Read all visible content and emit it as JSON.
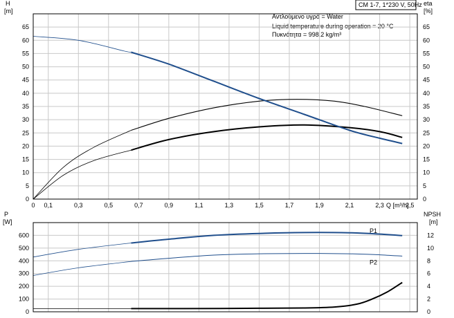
{
  "header": {
    "model": "CM 1-7, 1*230 V, 50Hz",
    "info_lines": [
      "Αντλούμενο υγρό = Water",
      "Liquid temperature during operation = 20 °C",
      "Πυκνότητα = 998.2 kg/m³"
    ]
  },
  "colors": {
    "head_curve": "#1f4e8c",
    "lines": "#000000",
    "grid": "#c8c8c8"
  },
  "chart_data": [
    {
      "type": "line",
      "title": "",
      "xlabel": "Q [m³/h]",
      "ylabel": "H [m]",
      "y2label": "eta [%]",
      "xlim": [
        0,
        2.55
      ],
      "ylim": [
        0,
        70
      ],
      "y2lim": [
        0,
        70
      ],
      "x_ticks": [
        "0",
        "0,1",
        "0,3",
        "0,5",
        "0,7",
        "0,9",
        "1,1",
        "1,3",
        "1,5",
        "1,7",
        "1,9",
        "2,1",
        "2,3",
        "2,5"
      ],
      "x_tick_values": [
        0,
        0.1,
        0.3,
        0.5,
        0.7,
        0.9,
        1.1,
        1.3,
        1.5,
        1.7,
        1.9,
        2.1,
        2.3,
        2.5
      ],
      "y_ticks": [
        0,
        5,
        10,
        15,
        20,
        25,
        30,
        35,
        40,
        45,
        50,
        55,
        60,
        65
      ],
      "grid": true,
      "series": [
        {
          "role": "head",
          "x": [
            0,
            0.3,
            0.6,
            0.65,
            0.9,
            1.2,
            1.5,
            1.8,
            2.1,
            2.3,
            2.45
          ],
          "values": [
            61.5,
            60,
            56,
            55.5,
            51,
            44.5,
            38,
            32,
            26,
            23,
            21
          ]
        },
        {
          "role": "efficiency-1",
          "x": [
            0,
            0.2,
            0.4,
            0.65,
            0.9,
            1.2,
            1.5,
            1.75,
            2.0,
            2.2,
            2.45
          ],
          "values": [
            0,
            12,
            19.5,
            26,
            30.5,
            34.5,
            37,
            37.7,
            37,
            35,
            31.5
          ]
        },
        {
          "role": "efficiency-2",
          "x": [
            0,
            0.2,
            0.4,
            0.65,
            0.9,
            1.2,
            1.5,
            1.8,
            2.1,
            2.3,
            2.45
          ],
          "values": [
            0,
            9,
            14.5,
            18.5,
            22.5,
            25.5,
            27.3,
            28,
            27,
            25.5,
            23.3
          ]
        }
      ]
    },
    {
      "type": "line",
      "title": "",
      "ylabel": "P [W]",
      "y2label": "NPSH [m]",
      "ylim": [
        0,
        700
      ],
      "y2lim": [
        0,
        14
      ],
      "y_ticks": [
        0,
        100,
        200,
        300,
        400,
        500,
        600
      ],
      "y2_ticks": [
        0,
        2,
        4,
        6,
        8,
        10,
        12
      ],
      "grid": true,
      "series": [
        {
          "name": "P1",
          "x": [
            0,
            0.3,
            0.65,
            0.9,
            1.2,
            1.5,
            1.8,
            2.1,
            2.3,
            2.45
          ],
          "values": [
            430,
            490,
            540,
            570,
            600,
            615,
            622,
            620,
            610,
            598
          ]
        },
        {
          "name": "P2",
          "x": [
            0,
            0.3,
            0.65,
            0.9,
            1.2,
            1.5,
            1.8,
            2.1,
            2.3,
            2.45
          ],
          "values": [
            285,
            345,
            395,
            420,
            445,
            455,
            458,
            455,
            447,
            437
          ]
        },
        {
          "role": "npsh",
          "x": [
            0,
            0.65,
            1.0,
            1.5,
            1.8,
            2.0,
            2.15,
            2.25,
            2.35,
            2.45
          ],
          "values": [
            0.5,
            0.5,
            0.5,
            0.55,
            0.6,
            0.75,
            1.2,
            2.0,
            3.1,
            4.6
          ]
        }
      ]
    }
  ]
}
